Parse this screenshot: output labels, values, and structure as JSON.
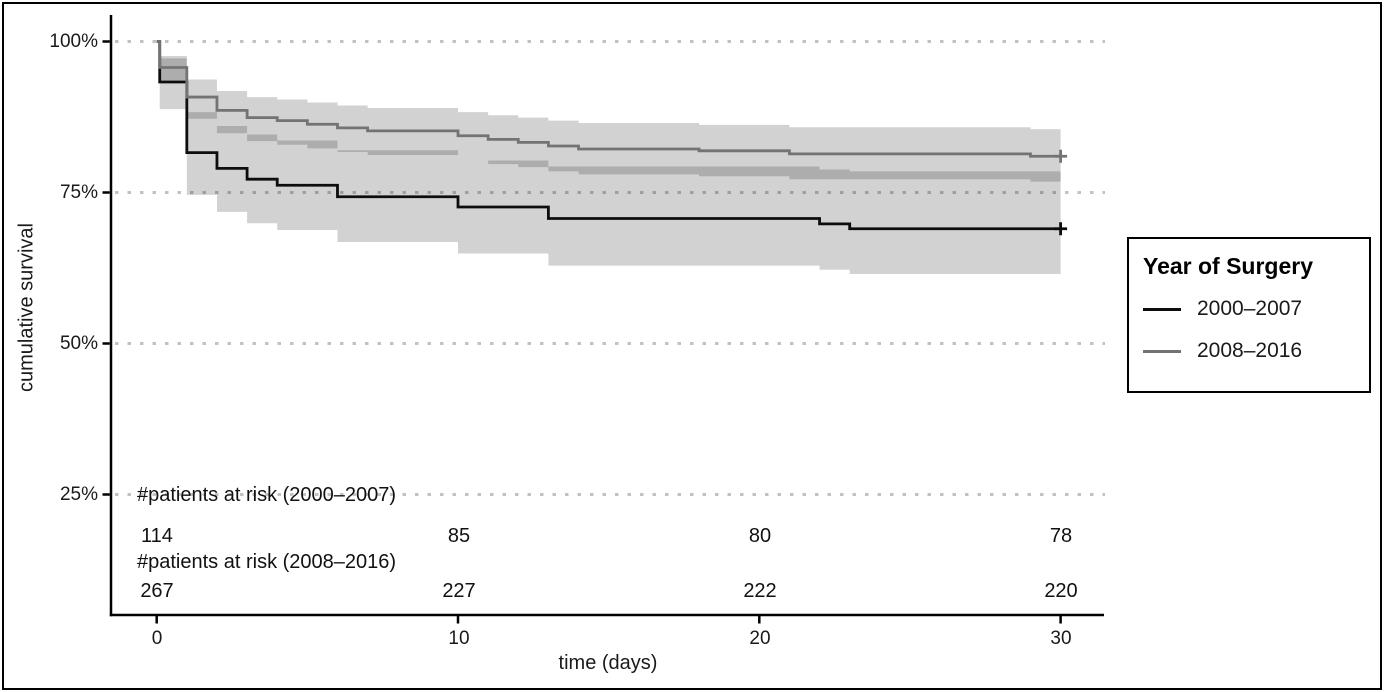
{
  "figure": {
    "background": "#ffffff",
    "border_color": "#000000"
  },
  "chart_data": {
    "type": "line",
    "subtype": "kaplan-meier-step-with-ci",
    "title": "",
    "xlabel": "time (days)",
    "ylabel": "cumulative survival",
    "xlim": [
      0,
      30
    ],
    "ylim": [
      5,
      102
    ],
    "x_ticks": [
      0,
      10,
      20,
      30
    ],
    "x_tick_labels": [
      "0",
      "10",
      "20",
      "30"
    ],
    "y_tick_values": [
      100,
      75,
      50,
      25
    ],
    "y_tick_labels": [
      "100%",
      "75%",
      "50%",
      "25%"
    ],
    "grid": "dotted-horizontal",
    "gridline_color": "#c2c2c2",
    "band_fill": "rgba(0,0,0,0.175)",
    "axis_color": "#000000",
    "legend": {
      "title": "Year of Surgery",
      "position": "right-outside",
      "entries": [
        {
          "label": "2000–2007",
          "color": "#0d0d0d"
        },
        {
          "label": "2008–2016",
          "color": "#737373"
        }
      ]
    },
    "series": [
      {
        "name": "2000–2007",
        "color": "#0d0d0d",
        "censor_at": [
          30,
          69.0
        ],
        "steps": [
          [
            0,
            100
          ],
          [
            0.1,
            93.3
          ],
          [
            1,
            81.6
          ],
          [
            2,
            79.0
          ],
          [
            3,
            77.2
          ],
          [
            4,
            76.2
          ],
          [
            6,
            74.3
          ],
          [
            10,
            72.6
          ],
          [
            13,
            70.7
          ],
          [
            22,
            69.8
          ],
          [
            23,
            69.0
          ],
          [
            30,
            69.0
          ]
        ],
        "ci_lower": [
          [
            0.1,
            88.8
          ],
          [
            1,
            74.6
          ],
          [
            2,
            71.8
          ],
          [
            3,
            69.9
          ],
          [
            4,
            68.8
          ],
          [
            6,
            66.8
          ],
          [
            10,
            64.9
          ],
          [
            13,
            62.9
          ],
          [
            22,
            62.2
          ],
          [
            23,
            61.5
          ],
          [
            30,
            61.5
          ]
        ],
        "ci_upper": [
          [
            0.1,
            97.2
          ],
          [
            1,
            88.3
          ],
          [
            2,
            86.0
          ],
          [
            3,
            84.6
          ],
          [
            4,
            83.6
          ],
          [
            6,
            82.0
          ],
          [
            10,
            80.3
          ],
          [
            13,
            79.3
          ],
          [
            22,
            78.8
          ],
          [
            23,
            78.5
          ],
          [
            30,
            78.5
          ]
        ]
      },
      {
        "name": "2008–2016",
        "color": "#737373",
        "censor_at": [
          30,
          81.0
        ],
        "steps": [
          [
            0,
            100
          ],
          [
            0.1,
            95.7
          ],
          [
            1,
            90.8
          ],
          [
            2,
            88.6
          ],
          [
            3,
            87.4
          ],
          [
            4,
            86.9
          ],
          [
            5,
            86.3
          ],
          [
            6,
            85.7
          ],
          [
            7,
            85.2
          ],
          [
            10,
            84.4
          ],
          [
            11,
            83.8
          ],
          [
            12,
            83.3
          ],
          [
            13,
            82.7
          ],
          [
            14,
            82.2
          ],
          [
            18,
            81.9
          ],
          [
            21,
            81.4
          ],
          [
            29,
            81.0
          ],
          [
            30,
            81.0
          ]
        ],
        "ci_lower": [
          [
            0.1,
            93.3
          ],
          [
            1,
            87.2
          ],
          [
            2,
            84.8
          ],
          [
            3,
            83.5
          ],
          [
            4,
            82.9
          ],
          [
            5,
            82.3
          ],
          [
            6,
            81.7
          ],
          [
            7,
            81.2
          ],
          [
            10,
            80.3
          ],
          [
            11,
            79.7
          ],
          [
            12,
            79.2
          ],
          [
            13,
            78.5
          ],
          [
            14,
            78.0
          ],
          [
            18,
            77.7
          ],
          [
            21,
            77.2
          ],
          [
            29,
            76.8
          ],
          [
            30,
            76.8
          ]
        ],
        "ci_upper": [
          [
            0.1,
            97.6
          ],
          [
            1,
            93.7
          ],
          [
            2,
            91.8
          ],
          [
            3,
            90.8
          ],
          [
            4,
            90.4
          ],
          [
            5,
            89.9
          ],
          [
            6,
            89.4
          ],
          [
            7,
            89.0
          ],
          [
            10,
            88.3
          ],
          [
            11,
            87.8
          ],
          [
            12,
            87.4
          ],
          [
            13,
            86.9
          ],
          [
            14,
            86.5
          ],
          [
            18,
            86.2
          ],
          [
            21,
            85.8
          ],
          [
            29,
            85.5
          ],
          [
            30,
            85.5
          ]
        ]
      }
    ],
    "risk_table": {
      "rows": [
        {
          "label": "#patients at risk (2000–2007)",
          "values": [
            "114",
            "85",
            "80",
            "78"
          ]
        },
        {
          "label": "#patients at risk (2008–2016)",
          "values": [
            "267",
            "227",
            "222",
            "220"
          ]
        }
      ]
    }
  }
}
